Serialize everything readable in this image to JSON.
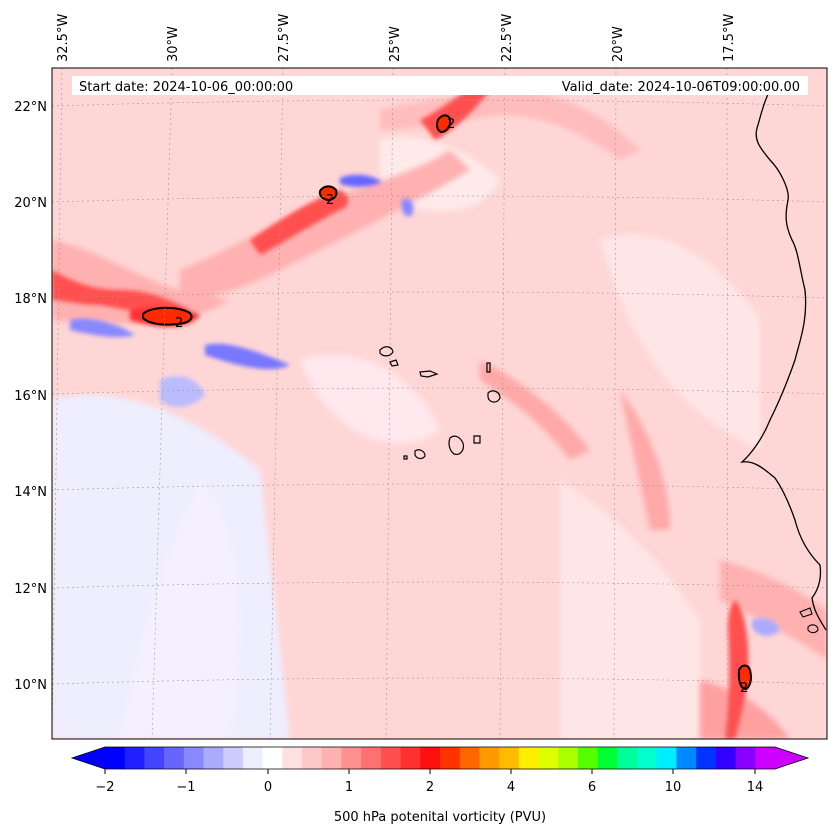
{
  "map": {
    "start_label": "Start date: 2024-10-06_00:00:00",
    "valid_label": "Valid_date: 2024-10-06T09:00:00.00",
    "lon_labels": [
      "32.5°W",
      "30°W",
      "27.5°W",
      "25°W",
      "22.5°W",
      "20°W",
      "17.5°W"
    ],
    "lat_labels": [
      "22°N",
      "20°N",
      "18°N",
      "16°N",
      "14°N",
      "12°N",
      "10°N"
    ],
    "contour_label": "2",
    "grid": true
  },
  "colorbar": {
    "label": "500 hPa potenital vorticity (PVU)",
    "tick_labels": [
      "−2",
      "−1",
      "0",
      "1",
      "2",
      "4",
      "6",
      "10",
      "14"
    ],
    "colors": [
      "#0000ff",
      "#2020ff",
      "#4444ff",
      "#6666ff",
      "#8888ff",
      "#aaaaff",
      "#ccccff",
      "#eeeeff",
      "#ffffff",
      "#ffe0e0",
      "#ffc8c8",
      "#ffb0b0",
      "#ff9090",
      "#ff7070",
      "#ff5050",
      "#ff3030",
      "#ff1010",
      "#ff3300",
      "#ff6600",
      "#ff9900",
      "#ffbb00",
      "#ffee00",
      "#ddff00",
      "#aaff00",
      "#55ff00",
      "#00ff33",
      "#00ff99",
      "#00ffcc",
      "#00eeff",
      "#0088ff",
      "#0033ff",
      "#3300ff",
      "#8800ff",
      "#cc00ff"
    ],
    "extend_low_color": "#0000ff",
    "extend_high_color": "#cc00ff"
  }
}
